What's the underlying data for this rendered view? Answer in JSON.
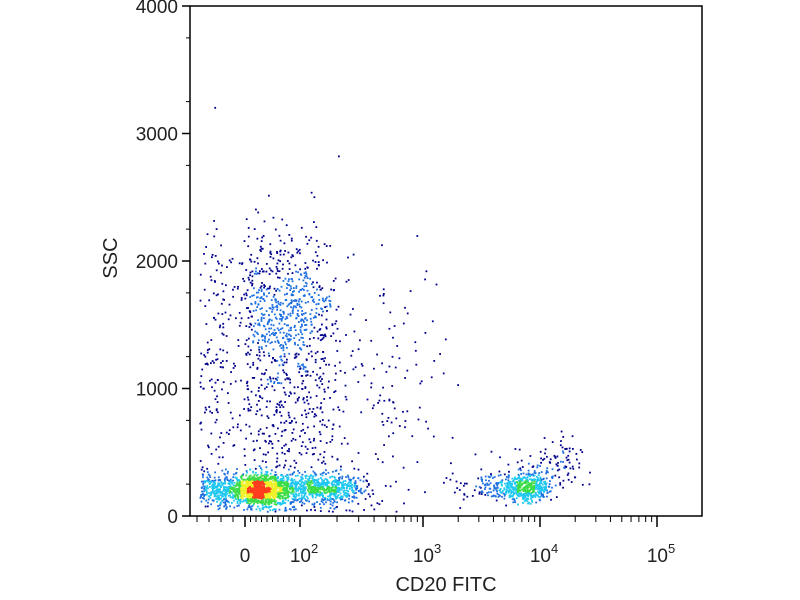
{
  "chart_data": {
    "type": "scatter",
    "subtype": "flow-cytometry density dot plot",
    "xlabel": "CD20 FITC",
    "ylabel": "SSC",
    "x_scale": "biexponential (linear near 0, log above)",
    "xlim": [
      -40,
      100000
    ],
    "ylim": [
      0,
      4000
    ],
    "y_ticks": [
      {
        "value": 0,
        "label": "0"
      },
      {
        "value": 1000,
        "label": "1000"
      },
      {
        "value": 2000,
        "label": "2000"
      },
      {
        "value": 3000,
        "label": "3000"
      },
      {
        "value": 4000,
        "label": "4000"
      }
    ],
    "x_ticks": [
      {
        "value": 0,
        "label_base": "0",
        "label_exp": ""
      },
      {
        "value": 100,
        "label_base": "10",
        "label_exp": "2"
      },
      {
        "value": 1000,
        "label_base": "10",
        "label_exp": "3"
      },
      {
        "value": 10000,
        "label_base": "10",
        "label_exp": "4"
      },
      {
        "value": 100000,
        "label_base": "10",
        "label_exp": "5"
      }
    ],
    "populations": [
      {
        "cx": 20,
        "cy": 210,
        "sx": 30,
        "sy": 60,
        "n": 1400
      },
      {
        "cx": 120,
        "cy": 220,
        "sx": 90,
        "sy": 60,
        "n": 900
      },
      {
        "cx": 60,
        "cy": 1650,
        "sx": 55,
        "sy": 320,
        "n": 650
      },
      {
        "cx": 70,
        "cy": 900,
        "sx": 70,
        "sy": 450,
        "n": 500
      },
      {
        "cx": 7000,
        "cy": 230,
        "sx": 2200,
        "sy": 55,
        "n": 550
      },
      {
        "cx": 12000,
        "cy": 380,
        "sx": 5000,
        "sy": 120,
        "n": 120
      },
      {
        "cx": 300,
        "cy": 900,
        "sx": 300,
        "sy": 500,
        "n": 150
      },
      {
        "cx": 800,
        "cy": 1200,
        "sx": 900,
        "sy": 800,
        "n": 40
      }
    ],
    "grid": false,
    "legend": "none",
    "colormap": [
      "#00008b",
      "#1e6fe0",
      "#20c8f0",
      "#3cdc46",
      "#f0f028",
      "#ff3c1e"
    ]
  }
}
